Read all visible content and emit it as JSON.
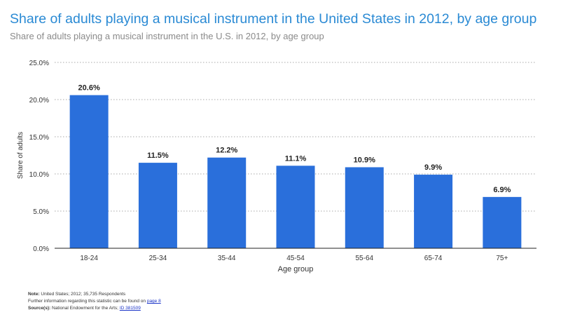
{
  "title": "Share of adults playing a musical instrument in the United States in 2012, by age group",
  "subtitle": "Share of adults playing a musical instrument in the U.S. in 2012, by age group",
  "chart_data": {
    "type": "bar",
    "categories": [
      "18-24",
      "25-34",
      "35-44",
      "45-54",
      "55-64",
      "65-74",
      "75+"
    ],
    "values": [
      20.6,
      11.5,
      12.2,
      11.1,
      10.9,
      9.9,
      6.9
    ],
    "data_labels": [
      "20.6%",
      "11.5%",
      "12.2%",
      "11.1%",
      "10.9%",
      "9.9%",
      "6.9%"
    ],
    "yticks": [
      0,
      5,
      10,
      15,
      20,
      25
    ],
    "ytick_labels": [
      "0.0%",
      "5.0%",
      "10.0%",
      "15.0%",
      "20.0%",
      "25.0%"
    ],
    "ylim": [
      0,
      25
    ],
    "xlabel": "Age group",
    "ylabel": "Share of adults",
    "grid": true,
    "bar_color": "#2a6fdb"
  },
  "footer": {
    "note_label": "Note:",
    "note_text": "United States; 2012; 35,735 Respondents",
    "info_text": "Further information regarding this statistic can be found on",
    "info_link": "page 8",
    "source_label": "Source(s):",
    "source_text": "National Endowment for the Arts;",
    "source_link": "ID 381509"
  }
}
